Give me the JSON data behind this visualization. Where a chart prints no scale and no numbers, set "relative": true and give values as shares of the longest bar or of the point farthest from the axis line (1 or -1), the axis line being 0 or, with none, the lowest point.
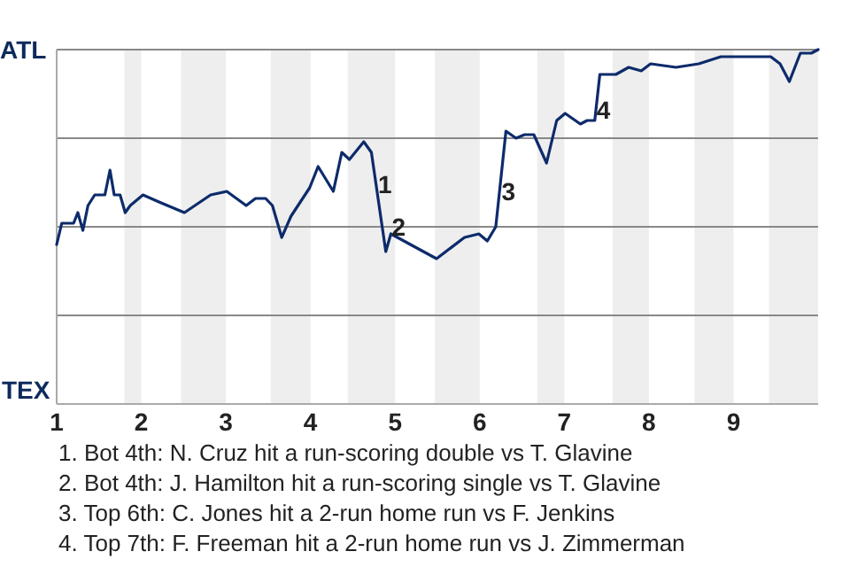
{
  "chart_data": {
    "type": "line",
    "relative": true,
    "grid": "y",
    "marker": "none",
    "line_style": "solid",
    "xlim": [
      1,
      10
    ],
    "xticks": [
      1,
      2,
      3,
      4,
      5,
      6,
      7,
      8,
      9
    ],
    "bands": [
      {
        "axis": "x",
        "from": 1.8,
        "to": 2,
        "color": "#eeeeee"
      },
      {
        "axis": "x",
        "from": 2.47,
        "to": 3,
        "color": "#eeeeee"
      },
      {
        "axis": "x",
        "from": 3.53,
        "to": 4,
        "color": "#eeeeee"
      },
      {
        "axis": "x",
        "from": 4.44,
        "to": 5,
        "color": "#eeeeee"
      },
      {
        "axis": "x",
        "from": 5.47,
        "to": 6,
        "color": "#eeeeee"
      },
      {
        "axis": "x",
        "from": 6.68,
        "to": 7,
        "color": "#eeeeee"
      },
      {
        "axis": "x",
        "from": 7.57,
        "to": 8,
        "color": "#eeeeee"
      },
      {
        "axis": "x",
        "from": 8.54,
        "to": 9,
        "color": "#eeeeee"
      },
      {
        "axis": "x",
        "from": 9.42,
        "to": 10,
        "color": "#eeeeee"
      }
    ],
    "series": [
      {
        "color": "#0d2b6b",
        "x": [
          1,
          1.06,
          1.2,
          1.25,
          1.31,
          1.37,
          1.45,
          1.57,
          1.63,
          1.68,
          1.75,
          1.81,
          1.87,
          2.02,
          2.21,
          2.51,
          2.82,
          3.01,
          3.24,
          3.35,
          3.47,
          3.55,
          3.66,
          3.77,
          3.99,
          4.09,
          4.27,
          4.37,
          4.46,
          4.63,
          4.72,
          4.89,
          4.95,
          5.49,
          5.82,
          5.99,
          6.09,
          6.19,
          6.31,
          6.43,
          6.53,
          6.64,
          6.79,
          6.91,
          7.01,
          7.19,
          7.27,
          7.36,
          7.42,
          7.52,
          7.61,
          7.76,
          7.91,
          8.02,
          8.32,
          8.59,
          8.85,
          9.03,
          9.44,
          9.55,
          9.66,
          9.79,
          9.92,
          10
        ],
        "values": [
          0.45,
          0.51,
          0.51,
          0.54,
          0.49,
          0.56,
          0.59,
          0.59,
          0.66,
          0.59,
          0.59,
          0.54,
          0.56,
          0.59,
          0.57,
          0.54,
          0.59,
          0.6,
          0.56,
          0.58,
          0.58,
          0.56,
          0.47,
          0.53,
          0.61,
          0.67,
          0.6,
          0.71,
          0.69,
          0.74,
          0.71,
          0.43,
          0.48,
          0.41,
          0.47,
          0.48,
          0.46,
          0.5,
          0.77,
          0.75,
          0.76,
          0.76,
          0.68,
          0.8,
          0.82,
          0.79,
          0.8,
          0.8,
          0.93,
          0.93,
          0.93,
          0.95,
          0.94,
          0.96,
          0.95,
          0.96,
          0.98,
          0.98,
          0.98,
          0.96,
          0.91,
          0.99,
          0.99,
          1
        ]
      }
    ],
    "annotations": [
      "ATL",
      "TEX",
      "1. Bot 4th: N. Cruz hit a run-scoring double vs T. Glavine",
      "2. Bot 4th: J. Hamilton hit a run-scoring single vs T. Glavine",
      "3. Top 6th: C. Jones hit a 2-run home run vs F. Jenkins",
      "4. Top 7th: F. Freeman hit a 2-run home run vs J. Zimmerman",
      {
        "text": "1",
        "x": 4.8,
        "y": 0.62
      },
      {
        "text": "2",
        "x": 4.96,
        "y": 0.5
      },
      {
        "text": "3",
        "x": 6.26,
        "y": 0.6
      },
      {
        "text": "4",
        "x": 7.38,
        "y": 0.83
      }
    ]
  }
}
